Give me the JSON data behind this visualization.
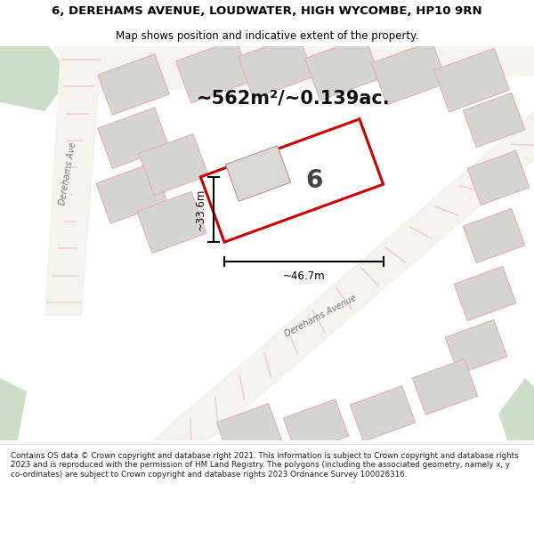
{
  "title_line1": "6, DEREHAMS AVENUE, LOUDWATER, HIGH WYCOMBE, HP10 9RN",
  "title_line2": "Map shows position and indicative extent of the property.",
  "area_text": "~562m²/~0.139ac.",
  "width_label": "~46.7m",
  "height_label": "~33.6m",
  "plot_number": "6",
  "road_label_left": "Derehams Ave",
  "road_label_bottom": "Derehams Avenue",
  "footer_text": "Contains OS data © Crown copyright and database right 2021. This information is subject to Crown copyright and database rights 2023 and is reproduced with the permission of HM Land Registry. The polygons (including the associated geometry, namely x, y co-ordinates) are subject to Crown copyright and database rights 2023 Ordnance Survey 100026316.",
  "map_bg": "#eaece8",
  "road_color": "#f5f3ee",
  "building_fill": "#d4d4d2",
  "building_edge": "#e8b0b0",
  "property_edge": "#cc0000",
  "property_fill": "#ffffff",
  "green_color": "#ccdec8",
  "stripe_color": "#f0c0c0",
  "dim_color": "#000000",
  "text_color": "#111111",
  "road_text_color": "#777777",
  "title_color": "#000000",
  "footer_color": "#222222",
  "title_size": 9.5,
  "subtitle_size": 8.5,
  "area_text_size": 15,
  "plot_num_size": 20,
  "dim_text_size": 8.5,
  "road_text_size": 7,
  "footer_size": 6.3
}
